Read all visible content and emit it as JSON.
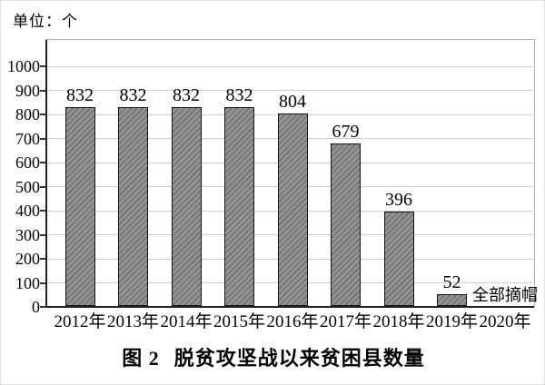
{
  "figure": {
    "unit_label": "单位：个",
    "caption": {
      "prefix": "图 2",
      "title": "脱贫攻坚战以来贫困县数量"
    },
    "annotation": "全部摘帽"
  },
  "chart_data": {
    "type": "bar",
    "title": "图 2 脱贫攻坚战以来贫困县数量",
    "unit_label": "单位：个",
    "categories": [
      "2012年",
      "2013年",
      "2014年",
      "2015年",
      "2016年",
      "2017年",
      "2018年",
      "2019年",
      "2020年"
    ],
    "values": [
      832,
      832,
      832,
      832,
      804,
      679,
      396,
      52,
      null
    ],
    "value_labels": [
      "832",
      "832",
      "832",
      "832",
      "804",
      "679",
      "396",
      "52",
      null
    ],
    "annotation": {
      "text": "全部摘帽",
      "year": "2019年",
      "value": 52
    },
    "xlabel": "",
    "ylabel": "单位：个",
    "ylim": [
      0,
      1113
    ],
    "yticks": [
      0,
      100,
      200,
      300,
      400,
      500,
      600,
      700,
      800,
      900,
      1000
    ],
    "grid": true,
    "legend": false,
    "colors": {
      "bar_fill": "#949494",
      "bar_hatch": "#6f6f6f",
      "bar_border": "#141414",
      "gridline": "#cccccc",
      "axis": "#222222",
      "box_border": "#b0b0b0",
      "tick": "#333333",
      "text": "#000000",
      "background": "#ffffff"
    }
  }
}
